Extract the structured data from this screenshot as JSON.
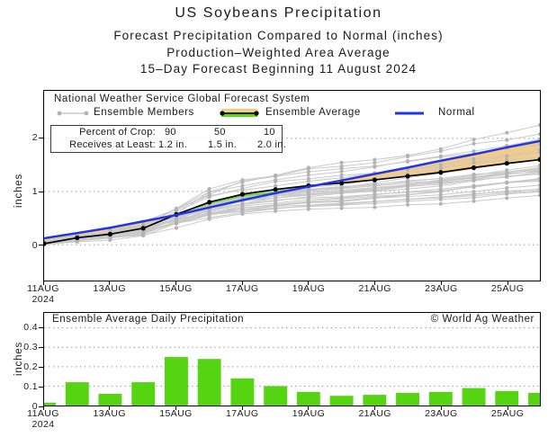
{
  "header": {
    "title": "US Soybeans Precipitation",
    "subtitle1": "Forecast Precipitation Compared to Normal (inches)",
    "subtitle2": "Production–Weighted Area Average",
    "subtitle3": "15–Day Forecast Beginning 11 August 2024"
  },
  "legend": {
    "system_label": "National Weather Service Global Forecast System",
    "ensemble_members_label": "Ensemble Members",
    "ensemble_average_label": "Ensemble Average",
    "normal_label": "Normal"
  },
  "crop_table": {
    "rows": [
      {
        "label": "Percent of Crop:",
        "values": [
          "90",
          "50",
          "10"
        ]
      },
      {
        "label": "Receives at Least:",
        "values": [
          "1.2 in.",
          "1.5 in.",
          "2.0 in."
        ]
      }
    ]
  },
  "colors": {
    "ensemble_member_line": "#c9c9c9",
    "ensemble_member_dot": "#b3b3b3",
    "ensemble_average_line": "#000000",
    "normal_line": "#2036e6",
    "band_below_normal": "#f5cc85",
    "band_above_normal": "#55dd11",
    "bar_green": "#55d412",
    "grid_gray": "#999999"
  },
  "chart_data": [
    {
      "type": "line",
      "name": "forecast-accumulated-precipitation",
      "ylabel": "inches",
      "x_days": [
        "11AUG",
        "12AUG",
        "13AUG",
        "14AUG",
        "15AUG",
        "16AUG",
        "17AUG",
        "18AUG",
        "19AUG",
        "20AUG",
        "21AUG",
        "22AUG",
        "23AUG",
        "24AUG",
        "25AUG",
        "26AUG"
      ],
      "x_tick_labels": [
        "11AUG",
        "13AUG",
        "15AUG",
        "17AUG",
        "19AUG",
        "21AUG",
        "23AUG",
        "25AUG"
      ],
      "x_year_label": "2024",
      "y_ticks": [
        0,
        1,
        2
      ],
      "ylim": [
        -0.67,
        2.9
      ],
      "grid": true,
      "series": [
        {
          "name": "Ensemble Average",
          "values": [
            0.02,
            0.13,
            0.2,
            0.31,
            0.57,
            0.8,
            0.95,
            1.04,
            1.11,
            1.16,
            1.22,
            1.29,
            1.36,
            1.45,
            1.53,
            1.6
          ]
        },
        {
          "name": "Normal",
          "values": [
            0.12,
            0.22,
            0.32,
            0.44,
            0.56,
            0.7,
            0.84,
            0.97,
            1.09,
            1.21,
            1.33,
            1.45,
            1.58,
            1.7,
            1.83,
            1.95
          ]
        }
      ],
      "ensemble_members": {
        "count": 30,
        "final_range": [
          0.9,
          2.25
        ],
        "start_range": [
          0.0,
          0.06
        ]
      }
    },
    {
      "type": "bar",
      "name": "ensemble-average-daily-precipitation",
      "title": "Ensemble Average Daily Precipitation",
      "watermark": "© World Ag Weather",
      "ylabel": "inches",
      "x_tick_labels": [
        "11AUG",
        "13AUG",
        "15AUG",
        "17AUG",
        "19AUG",
        "21AUG",
        "23AUG",
        "25AUG"
      ],
      "x_year_label": "2024",
      "categories": [
        "11AUG",
        "12AUG",
        "13AUG",
        "14AUG",
        "15AUG",
        "16AUG",
        "17AUG",
        "18AUG",
        "19AUG",
        "20AUG",
        "21AUG",
        "22AUG",
        "23AUG",
        "24AUG",
        "25AUG",
        "26AUG"
      ],
      "values": [
        0.015,
        0.12,
        0.06,
        0.12,
        0.25,
        0.24,
        0.14,
        0.1,
        0.07,
        0.05,
        0.055,
        0.065,
        0.07,
        0.09,
        0.075,
        0.065
      ],
      "y_ticks": [
        0,
        0.1,
        0.2,
        0.3,
        0.4
      ],
      "ylim": [
        0,
        0.477
      ],
      "grid": true
    }
  ]
}
